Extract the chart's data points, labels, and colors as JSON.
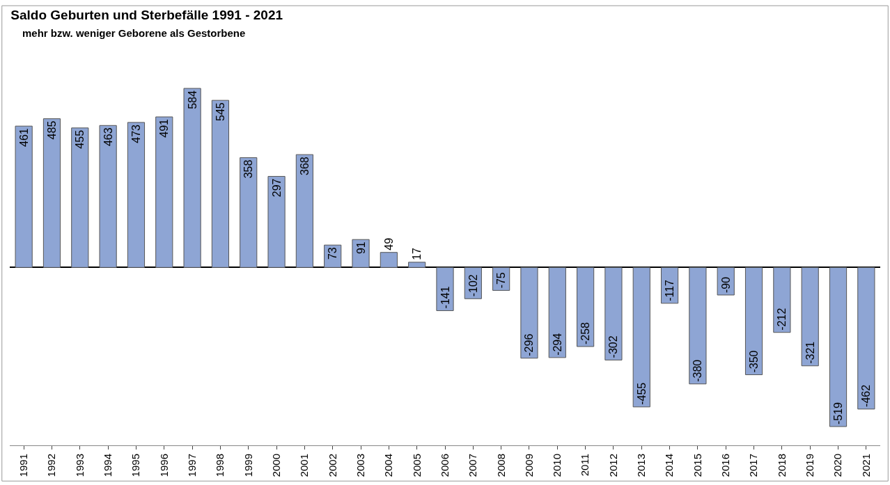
{
  "chart_data": {
    "type": "bar",
    "title": "Saldo Geburten und Sterbefälle 1991 - 2021",
    "subtitle": "mehr bzw. weniger Geborene als Gestorbene",
    "categories": [
      "1991",
      "1992",
      "1993",
      "1994",
      "1995",
      "1996",
      "1997",
      "1998",
      "1999",
      "2000",
      "2001",
      "2002",
      "2003",
      "2004",
      "2005",
      "2006",
      "2007",
      "2008",
      "2009",
      "2010",
      "2011",
      "2012",
      "2013",
      "2014",
      "2015",
      "2016",
      "2017",
      "2018",
      "2019",
      "2020",
      "2021"
    ],
    "values": [
      461,
      485,
      455,
      463,
      473,
      491,
      584,
      545,
      358,
      297,
      368,
      73,
      91,
      49,
      17,
      -141,
      -102,
      -75,
      -296,
      -294,
      -258,
      -302,
      -455,
      -117,
      -380,
      -90,
      -350,
      -212,
      -321,
      -519,
      -462
    ],
    "color": "#8ea5d4",
    "data_labels": true,
    "legend": false
  }
}
